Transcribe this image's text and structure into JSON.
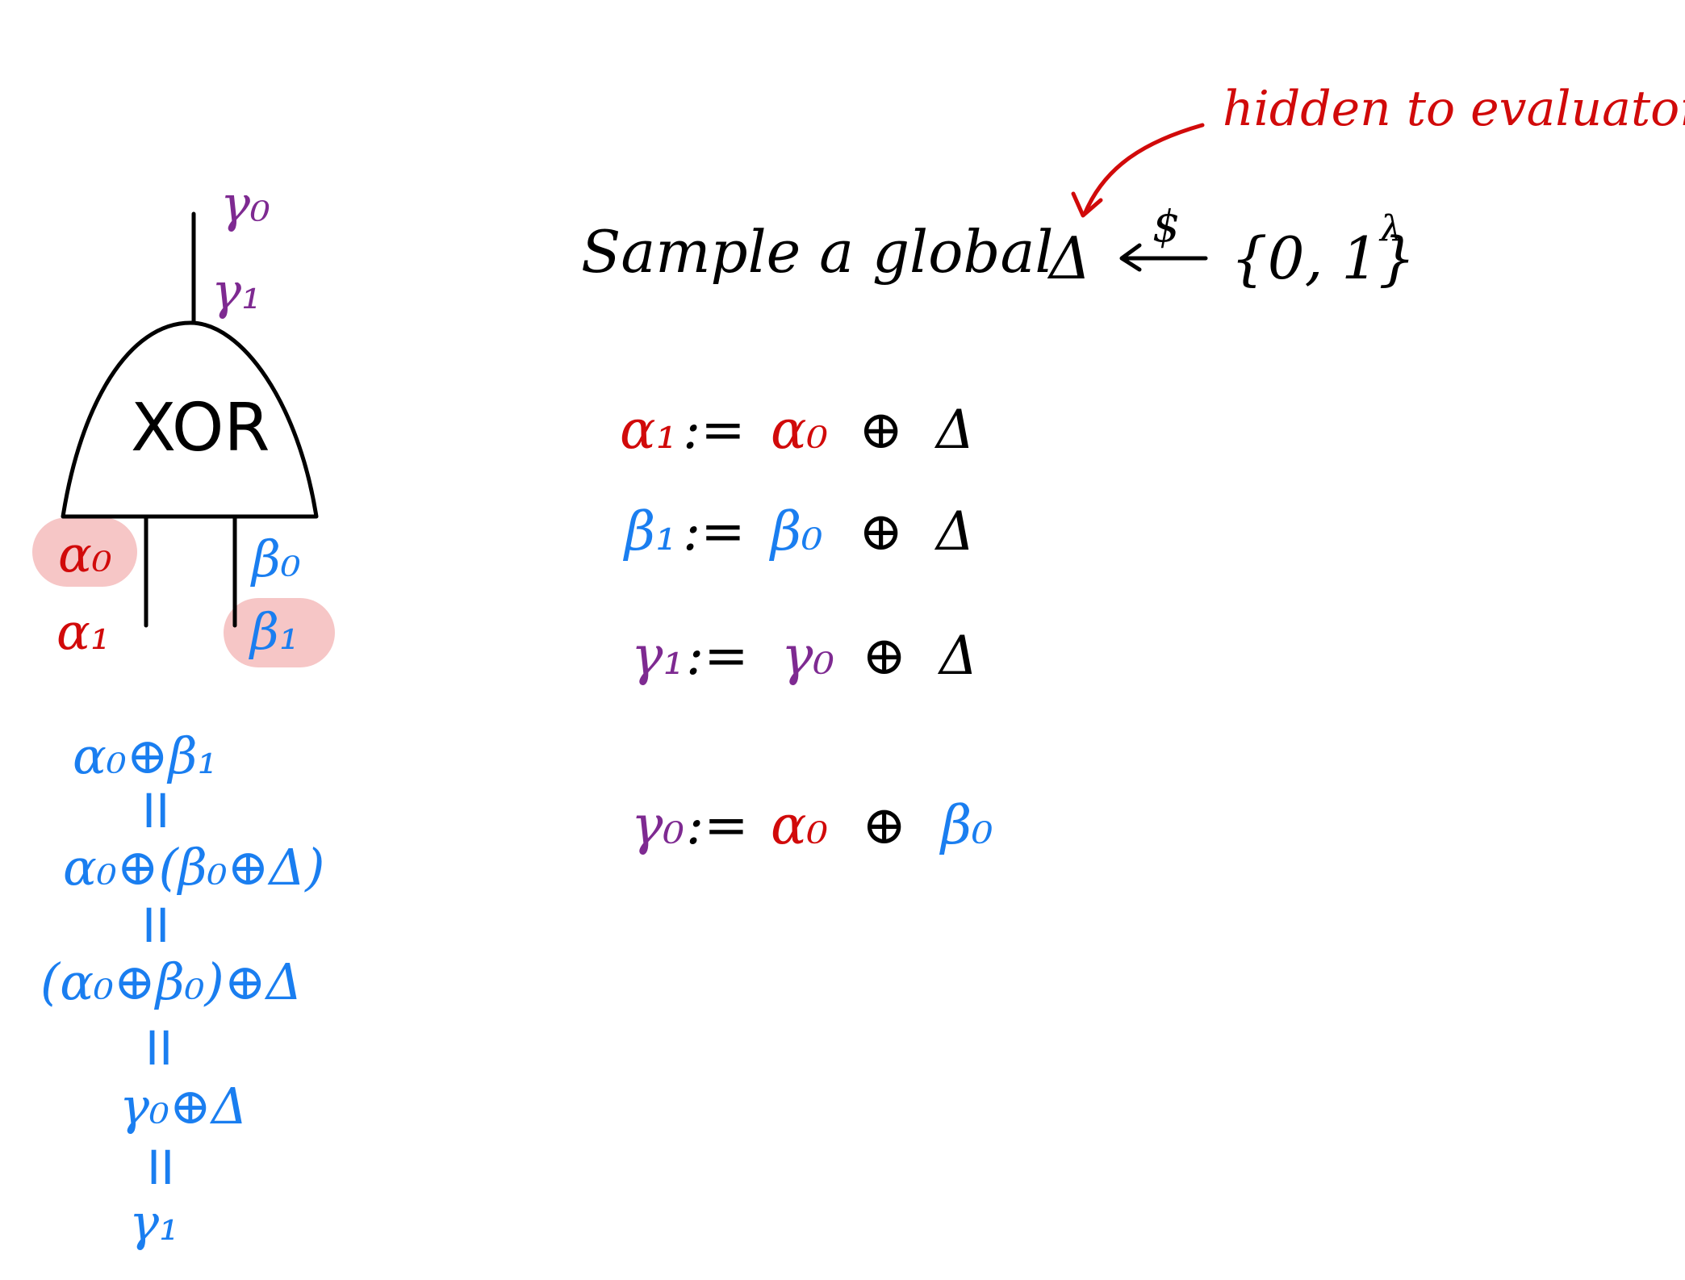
{
  "gate": {
    "label": "XOR",
    "output_labels": [
      "γ₀",
      "γ₁"
    ],
    "input_left_labels": [
      "α₀",
      "α₁"
    ],
    "input_right_labels": [
      "β₀",
      "β₁"
    ]
  },
  "top_line": {
    "text": "Sample a global",
    "delta": "Δ",
    "dollar": "$",
    "set": "{0, 1}",
    "exponent": "λ"
  },
  "annotation": "hidden to evaluator",
  "equations": [
    {
      "lhs": "α₁",
      "op": ":=",
      "a": "α₀",
      "xor": "⊕",
      "b": "Δ"
    },
    {
      "lhs": "β₁",
      "op": ":=",
      "a": "β₀",
      "xor": "⊕",
      "b": "Δ"
    },
    {
      "lhs": "γ₁",
      "op": ":=",
      "a": "γ₀",
      "xor": "⊕",
      "b": "Δ"
    },
    {
      "lhs": "γ₀",
      "op": ":=",
      "a": "α₀",
      "xor": "⊕",
      "b": "β₀"
    }
  ],
  "derivation": {
    "lines": [
      "α₀⊕β₁",
      "α₀⊕(β₀⊕Δ)",
      "(α₀⊕β₀)⊕Δ",
      "γ₀⊕Δ",
      "γ₁"
    ],
    "relation": "II"
  },
  "colors": {
    "alpha": "#d10a0a",
    "beta": "#1a7ef0",
    "gamma": "#7e2a91",
    "ink": "#000000",
    "highlight": "#f6c6c6"
  }
}
